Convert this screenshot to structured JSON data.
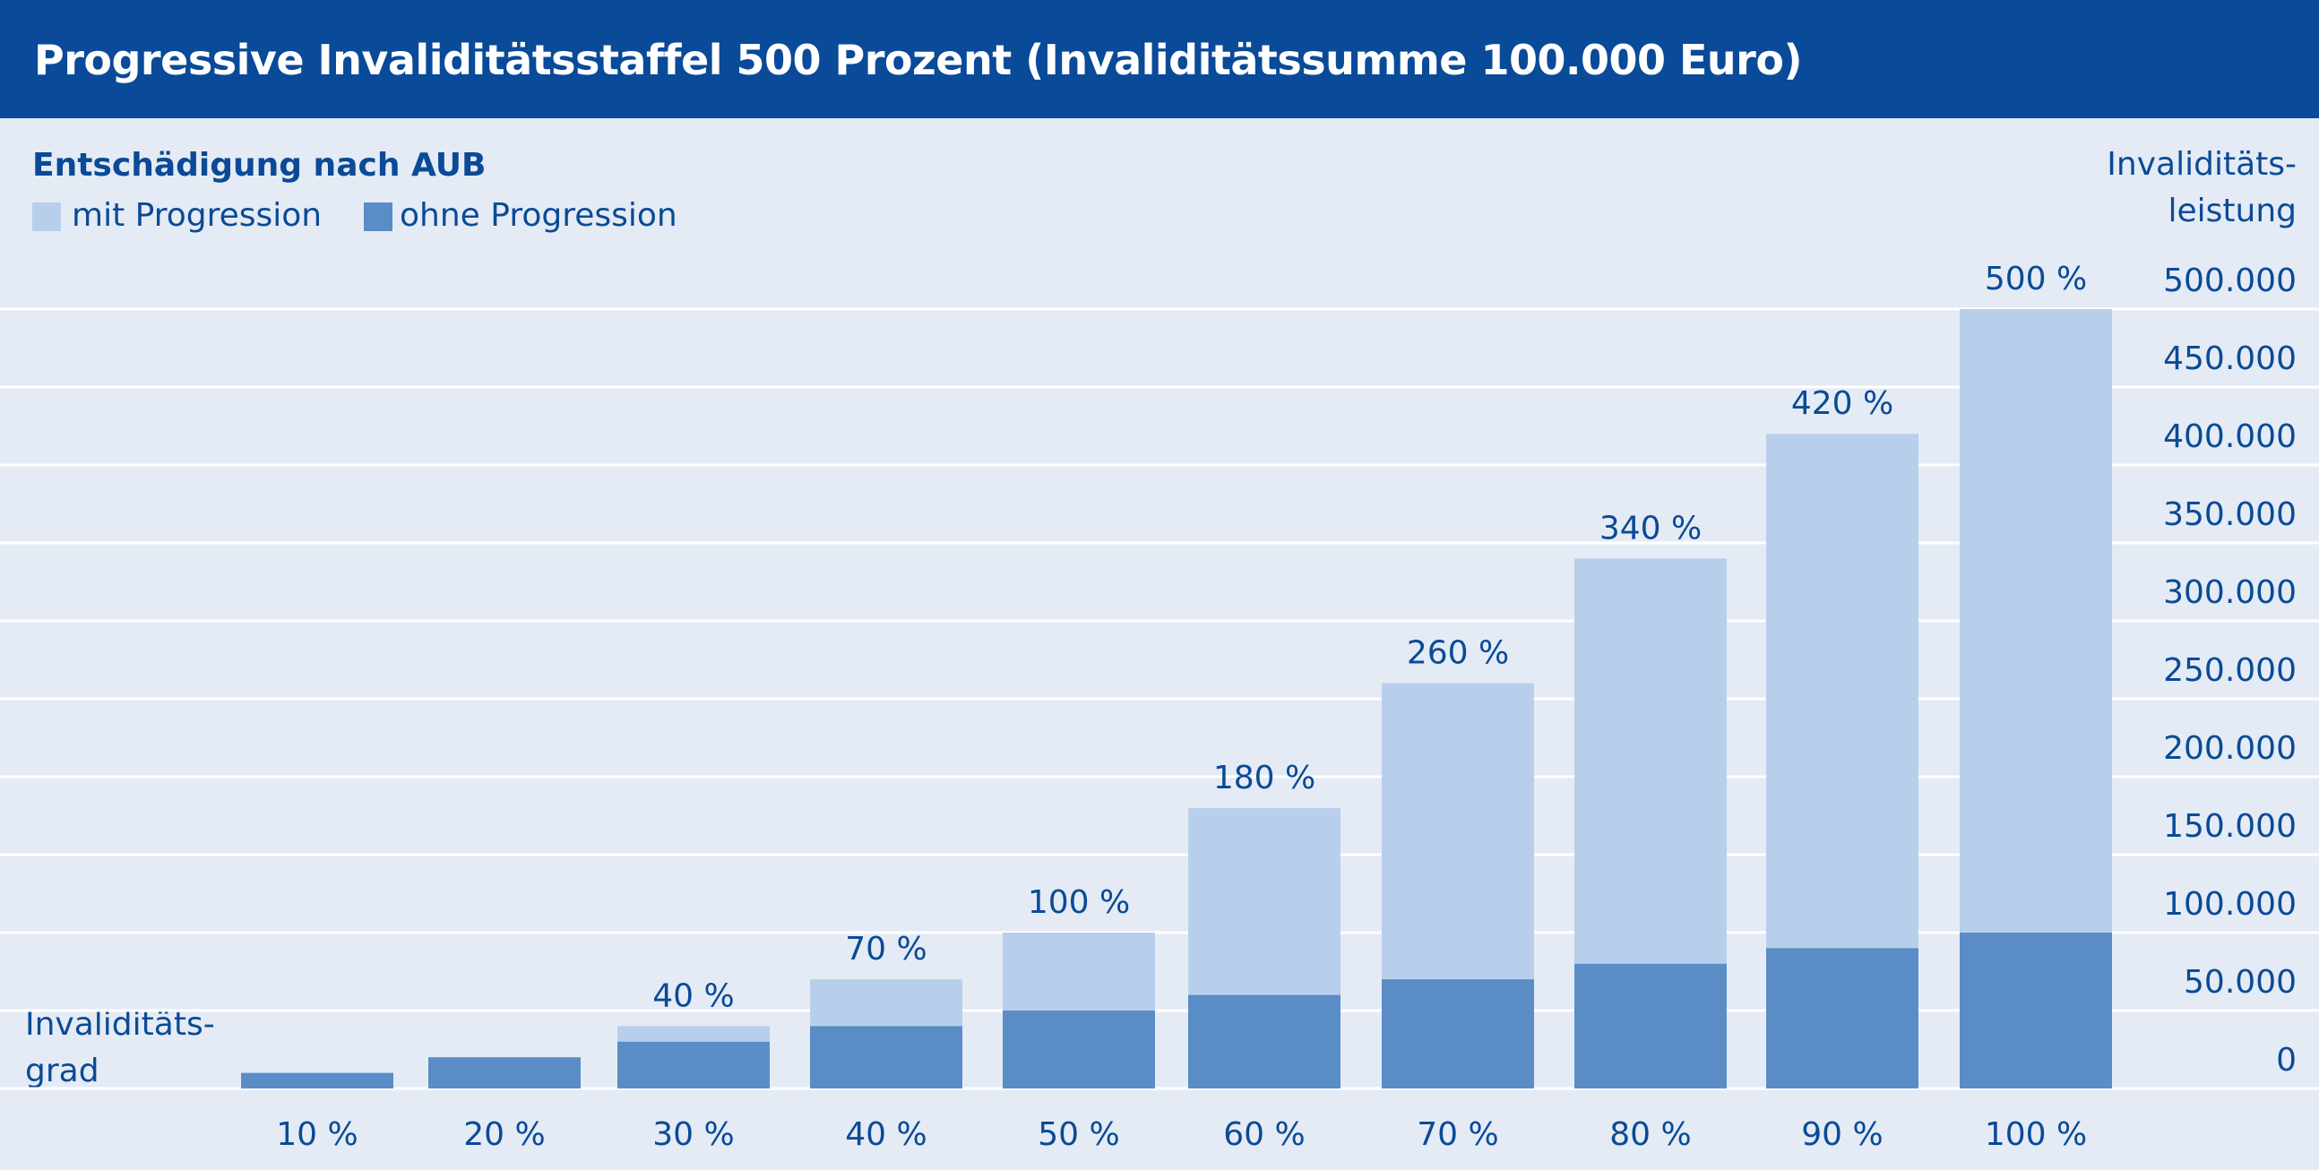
{
  "header": {
    "title": "Progressive Invaliditätsstaffel 500 Prozent (Invaliditätssumme 100.000 Euro)"
  },
  "colors": {
    "header_bg": "#094a99",
    "background": "#e4ebf5",
    "text": "#0a4a96",
    "with_progression": "#b8cfeb",
    "without_progression": "#5a8dc6",
    "gridline": "#ffffff"
  },
  "chart_data": {
    "type": "bar",
    "stacked": "overlay",
    "title": "Progressive Invaliditätsstaffel 500 Prozent (Invaliditätssumme 100.000 Euro)",
    "subtitle": "Entschädigung nach AUB",
    "xlabel": [
      "Invaliditäts-",
      "grad"
    ],
    "ylabel": [
      "Invaliditäts-",
      "leistung"
    ],
    "ylim": [
      0,
      500000
    ],
    "yticks": [
      0,
      50000,
      100000,
      150000,
      200000,
      250000,
      300000,
      350000,
      400000,
      450000,
      500000
    ],
    "ytick_labels": [
      "0",
      "50.000",
      "100.000",
      "150.000",
      "200.000",
      "250.000",
      "300.000",
      "350.000",
      "400.000",
      "450.000",
      "500.000"
    ],
    "grid": true,
    "legend_position": "top-left",
    "categories": [
      "10 %",
      "20 %",
      "30 %",
      "40 %",
      "50 %",
      "60 %",
      "70 %",
      "80 %",
      "90 %",
      "100 %"
    ],
    "series": [
      {
        "name": "mit Progression",
        "color": "#b8cfeb",
        "values": [
          10000,
          20000,
          40000,
          70000,
          100000,
          180000,
          260000,
          340000,
          420000,
          500000
        ]
      },
      {
        "name": "ohne Progression",
        "color": "#5a8dc6",
        "values": [
          10000,
          20000,
          30000,
          40000,
          50000,
          60000,
          70000,
          80000,
          90000,
          100000
        ]
      }
    ],
    "data_labels": [
      "",
      "",
      "40 %",
      "70 %",
      "100 %",
      "180 %",
      "260 %",
      "340 %",
      "420 %",
      "500 %"
    ]
  }
}
